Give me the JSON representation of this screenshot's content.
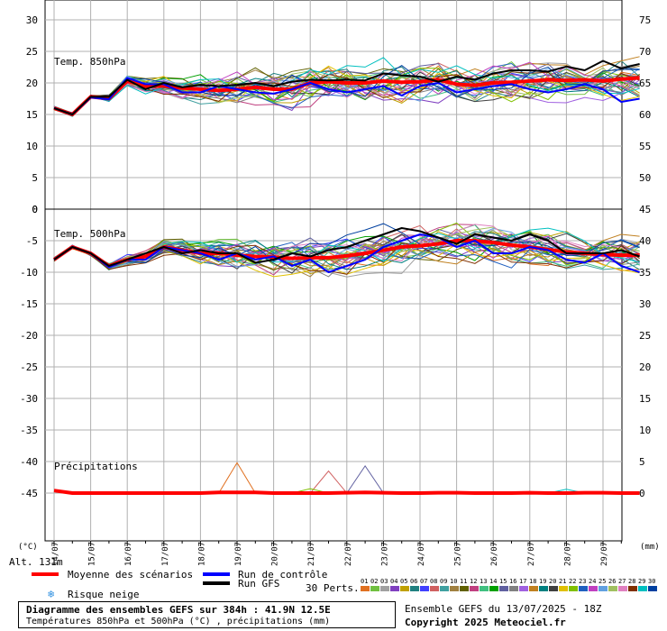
{
  "chart_data": [
    {
      "type": "line",
      "panel": "Temp. 850hPa",
      "title": "Temp. 850hPa",
      "y_ticks_left": [
        30,
        25,
        20,
        15,
        10,
        5,
        0
      ],
      "y_ticks_right": [
        75,
        70,
        65,
        60,
        55,
        50
      ],
      "ylim_left": [
        0,
        30
      ],
      "x_days": [
        0,
        0.5,
        1,
        1.5,
        2,
        2.5,
        3,
        3.5,
        4,
        4.5,
        5,
        5.5,
        6,
        6.5,
        7,
        7.5,
        8,
        8.5,
        9,
        9.5,
        10,
        10.5,
        11,
        11.5,
        12,
        12.5,
        13,
        13.5,
        14,
        14.5,
        15,
        15.5,
        16
      ],
      "series": [
        {
          "role": "mean",
          "color": "#ff0000",
          "values": [
            16,
            15,
            17.8,
            17.5,
            20.3,
            19.5,
            19.5,
            19.2,
            19,
            18.8,
            19,
            19.3,
            19,
            19,
            20,
            20.2,
            20,
            20,
            20.3,
            20.1,
            20.2,
            20.5,
            19.8,
            19.6,
            20,
            20.1,
            20.3,
            20.5,
            20.4,
            20.5,
            20.3,
            20.6,
            20.8
          ]
        },
        {
          "role": "control",
          "color": "#0000ff",
          "values": [
            16,
            15,
            17.7,
            17.4,
            20.8,
            19.8,
            19.8,
            18.5,
            18.5,
            19.5,
            19,
            18.5,
            18.3,
            19,
            20,
            19,
            18.5,
            19,
            19.5,
            18,
            19.5,
            20,
            18.5,
            19,
            19.5,
            19.8,
            19,
            18.5,
            19,
            19.8,
            19,
            17,
            17.5
          ]
        },
        {
          "role": "gfs",
          "color": "#000000",
          "values": [
            16,
            15,
            17.8,
            17.8,
            20.5,
            19,
            20,
            19.3,
            19.7,
            19.5,
            19.7,
            20,
            19.5,
            20.2,
            20.5,
            20.4,
            20.5,
            20.4,
            21.5,
            21.2,
            21,
            20.2,
            21,
            20.5,
            21.5,
            22,
            22,
            21.8,
            22.6,
            22,
            23.5,
            22.3,
            23
          ]
        }
      ]
    },
    {
      "type": "line",
      "panel": "Temp. 500hPa",
      "title": "Temp. 500hPa",
      "y_ticks_left": [
        -5,
        -10,
        -15,
        -20,
        -25,
        -30,
        -35,
        -40,
        -45
      ],
      "y_ticks_right": [
        45,
        40,
        35,
        30,
        25,
        20,
        15,
        10,
        5,
        0
      ],
      "ylim_left": [
        -47,
        -2
      ],
      "x_days": [
        0,
        0.5,
        1,
        1.5,
        2,
        2.5,
        3,
        3.5,
        4,
        4.5,
        5,
        5.5,
        6,
        6.5,
        7,
        7.5,
        8,
        8.5,
        9,
        9.5,
        10,
        10.5,
        11,
        11.5,
        12,
        12.5,
        13,
        13.5,
        14,
        14.5,
        15,
        15.5,
        16
      ],
      "series": [
        {
          "role": "mean",
          "color": "#ff0000",
          "values": [
            -8,
            -6,
            -7,
            -9,
            -8,
            -7.5,
            -6,
            -6.5,
            -7,
            -7,
            -7.3,
            -7.5,
            -7.6,
            -7.8,
            -7.7,
            -7.7,
            -7.4,
            -7,
            -6.5,
            -6,
            -5.8,
            -5.5,
            -5,
            -5,
            -5.3,
            -5.7,
            -6,
            -6.4,
            -6.8,
            -7,
            -7.2,
            -7.3,
            -7.3
          ]
        },
        {
          "role": "control",
          "color": "#0000ff",
          "values": [
            -8,
            -6,
            -7,
            -9.2,
            -8,
            -8,
            -6,
            -6.5,
            -7,
            -8,
            -7,
            -8,
            -7.5,
            -9,
            -8,
            -10,
            -9,
            -8,
            -6,
            -5,
            -4,
            -4.5,
            -6,
            -5,
            -7,
            -7,
            -6,
            -6.5,
            -8,
            -8.5,
            -7,
            -9,
            -10
          ]
        },
        {
          "role": "gfs",
          "color": "#000000",
          "values": [
            -8,
            -6,
            -7,
            -9,
            -8,
            -7,
            -6,
            -7,
            -6.5,
            -7,
            -7,
            -8.5,
            -8,
            -7,
            -7.5,
            -6.5,
            -6,
            -5,
            -4,
            -3,
            -3.5,
            -4.5,
            -5.5,
            -4,
            -4.5,
            -5,
            -4,
            -5,
            -7,
            -7,
            -7,
            -6.5,
            -7.5
          ]
        }
      ]
    },
    {
      "type": "line",
      "panel": "Précipitations",
      "title": "Précipitations",
      "y_ticks_right": [
        5,
        0
      ],
      "ylim_right": [
        0,
        5
      ],
      "x_days": [
        0,
        0.5,
        1,
        1.5,
        2,
        2.5,
        3,
        3.5,
        4,
        4.5,
        5,
        5.5,
        6,
        6.5,
        7,
        7.5,
        8,
        8.5,
        9,
        9.5,
        10,
        10.5,
        11,
        11.5,
        12,
        12.5,
        13,
        13.5,
        14,
        14.5,
        15,
        15.5,
        16
      ],
      "series": [
        {
          "role": "mean",
          "color": "#ff0000",
          "values": [
            0.4,
            0,
            0,
            0,
            0,
            0,
            0,
            0,
            0,
            0.1,
            0.1,
            0.1,
            0,
            0,
            0,
            0,
            0.05,
            0.1,
            0.05,
            0,
            0,
            0.05,
            0.05,
            0,
            0,
            0,
            0.05,
            0,
            0,
            0.05,
            0.05,
            0,
            0
          ]
        }
      ]
    }
  ],
  "x_date_labels": [
    "14/07",
    "15/07",
    "16/07",
    "17/07",
    "18/07",
    "19/07",
    "20/07",
    "21/07",
    "22/07",
    "23/07",
    "24/07",
    "25/07",
    "26/07",
    "27/07",
    "28/07",
    "29/07"
  ],
  "axis": {
    "left_unit": "(°C)",
    "right_unit": "(mm)",
    "altitude": "Alt. 131m"
  },
  "legend": {
    "mean": "Moyenne des scénarios",
    "control": "Run de contrôle",
    "gfs": "Run GFS",
    "snow": "Risque neige",
    "perts": "30 Perts.",
    "perts_numbers": [
      "01",
      "02",
      "03",
      "04",
      "05",
      "06",
      "07",
      "08",
      "09",
      "10",
      "11",
      "12",
      "13",
      "14",
      "15",
      "16",
      "17",
      "18",
      "19",
      "20",
      "21",
      "22",
      "23",
      "24",
      "25",
      "26",
      "27",
      "28",
      "29",
      "30"
    ],
    "perts_colors": [
      "#e07020",
      "#70c040",
      "#a0a0a0",
      "#8040c0",
      "#c0a000",
      "#208080",
      "#4040ff",
      "#d06060",
      "#40a0a0",
      "#a08040",
      "#606000",
      "#c04080",
      "#40c080",
      "#00a000",
      "#6060a0",
      "#808080",
      "#a060e0",
      "#c08020",
      "#008080",
      "#404040",
      "#e0c000",
      "#80c000",
      "#2060c0",
      "#c040c0",
      "#60a0e0",
      "#a0c060",
      "#e080c0",
      "#803000",
      "#00c0c0",
      "#0040a0"
    ]
  },
  "footer": {
    "title": "Diagramme des ensembles GEFS sur 384h : 41.9N 12.5E",
    "subtitle": "Températures 850hPa et 500hPa (°C) , précipitations (mm)",
    "run": "Ensemble GEFS du 13/07/2025 - 18Z",
    "copyright": "Copyright 2025 Meteociel.fr"
  }
}
